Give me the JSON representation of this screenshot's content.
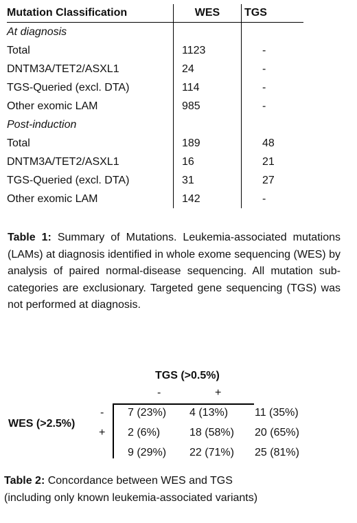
{
  "table1": {
    "headers": [
      "Mutation Classification",
      "WES",
      "TGS"
    ],
    "sections": [
      {
        "label": "At diagnosis",
        "rows": [
          {
            "name": "Total",
            "wes": "1123",
            "tgs": "-"
          },
          {
            "name": "DNTM3A/TET2/ASXL1",
            "wes": "24",
            "tgs": "-"
          },
          {
            "name": "TGS-Queried (excl. DTA)",
            "wes": "114",
            "tgs": "-"
          },
          {
            "name": "Other exomic LAM",
            "wes": "985",
            "tgs": "-"
          }
        ]
      },
      {
        "label": "Post-induction",
        "rows": [
          {
            "name": "Total",
            "wes": "189",
            "tgs": "48"
          },
          {
            "name": "DNTM3A/TET2/ASXL1",
            "wes": "16",
            "tgs": "21"
          },
          {
            "name": "TGS-Queried (excl. DTA)",
            "wes": "31",
            "tgs": "27"
          },
          {
            "name": "Other exomic LAM",
            "wes": "142",
            "tgs": "-"
          }
        ]
      }
    ]
  },
  "caption1": {
    "label": "Table 1:",
    "text": "Summary of Mutations. Leukemia-associated mutations (LAMs) at diagnosis identified in whole exome sequencing (WES) by analysis of paired normal-disease sequencing. All mutation sub-categories are exclusionary. Targeted gene sequencing (TGS) was not performed at diagnosis."
  },
  "table2": {
    "col_title": "TGS (>0.5%)",
    "col_minus": "-",
    "col_plus": "+",
    "row_title": "WES (>2.5%)",
    "row_minus": "-",
    "row_plus": "+",
    "cells": [
      [
        "7 (23%)",
        "4 (13%)",
        "11 (35%)"
      ],
      [
        "2 (6%)",
        "18 (58%)",
        "20 (65%)"
      ],
      [
        "9 (29%)",
        "22 (71%)",
        "25 (81%)"
      ]
    ]
  },
  "caption2": {
    "label": "Table 2:",
    "line1": " Concordance between WES and TGS",
    "line2": "(including only known leukemia-associated variants)"
  }
}
